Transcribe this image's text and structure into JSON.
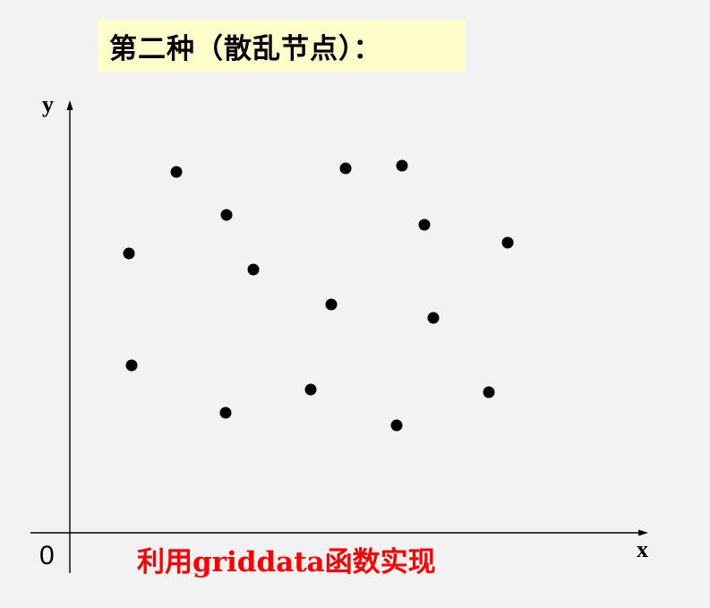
{
  "title": "第二种（散乱节点）：",
  "axes": {
    "x_label": "x",
    "y_label": "y",
    "origin_label": "0"
  },
  "caption": "利用griddata函数实现",
  "colors": {
    "background": "#f2f2f2",
    "title_highlight": "#ffffcc",
    "caption": "#ff0000",
    "points": "#000000",
    "axes": "#000000"
  },
  "chart_data": {
    "type": "scatter",
    "grid": false,
    "x_ticks": [],
    "y_ticks": []
  }
}
